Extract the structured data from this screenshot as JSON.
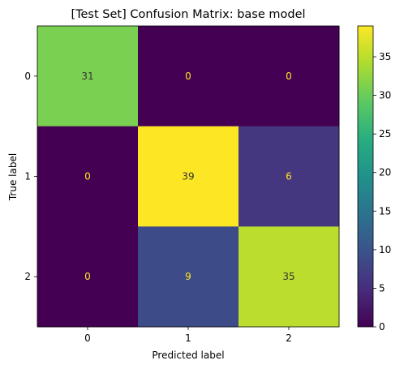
{
  "chart_data": {
    "type": "heatmap",
    "title": "[Test Set] Confusion Matrix: base model",
    "xlabel": "Predicted label",
    "ylabel": "True label",
    "x_categories": [
      "0",
      "1",
      "2"
    ],
    "y_categories": [
      "0",
      "1",
      "2"
    ],
    "values": [
      [
        31,
        0,
        0
      ],
      [
        0,
        39,
        6
      ],
      [
        0,
        9,
        35
      ]
    ],
    "colormap": "viridis",
    "colorbar": {
      "range": [
        0,
        39
      ],
      "ticks": [
        0,
        5,
        10,
        15,
        20,
        25,
        30,
        35
      ]
    },
    "text_colors": {
      "on_dark": "#fde725",
      "on_light": "#333333"
    }
  }
}
